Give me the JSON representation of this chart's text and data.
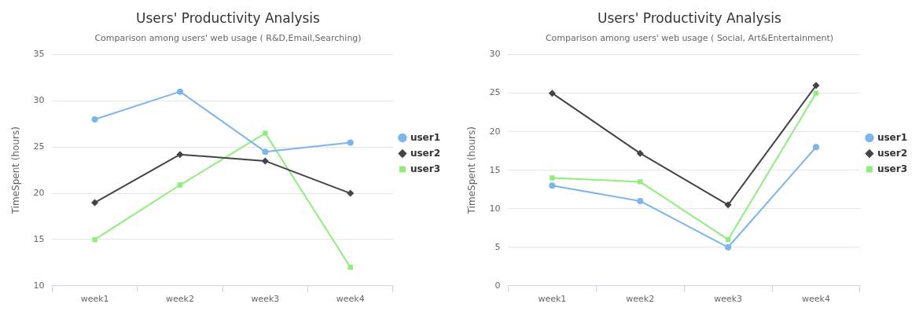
{
  "chart_data": [
    {
      "type": "line",
      "title": "Users' Productivity Analysis",
      "subtitle": "Comparison among users' web usage ( R&D,Email,Searching)",
      "ylabel": "TimeSpent (hours)",
      "categories": [
        "week1",
        "week2",
        "week3",
        "week4"
      ],
      "series": [
        {
          "name": "user1",
          "color": "#7cb5ec",
          "marker": "circle",
          "values": [
            28,
            31,
            24.5,
            25.5
          ]
        },
        {
          "name": "user2",
          "color": "#434348",
          "marker": "diamond",
          "values": [
            19,
            24.2,
            23.5,
            20
          ]
        },
        {
          "name": "user3",
          "color": "#90ed7d",
          "marker": "square",
          "values": [
            15,
            20.9,
            26.5,
            12
          ]
        }
      ],
      "ylim": [
        10,
        35
      ],
      "yticks": [
        10,
        15,
        20,
        25,
        30,
        35
      ],
      "grid": "y",
      "legend": "right"
    },
    {
      "type": "line",
      "title": "Users' Productivity Analysis",
      "subtitle": "Comparison among users' web usage ( Social, Art&Entertainment)",
      "ylabel": "TimeSpent (hours)",
      "categories": [
        "week1",
        "week2",
        "week3",
        "week4"
      ],
      "series": [
        {
          "name": "user1",
          "color": "#7cb5ec",
          "marker": "circle",
          "values": [
            13,
            11,
            5,
            18
          ]
        },
        {
          "name": "user2",
          "color": "#434348",
          "marker": "diamond",
          "values": [
            25,
            17.2,
            10.5,
            26
          ]
        },
        {
          "name": "user3",
          "color": "#90ed7d",
          "marker": "square",
          "values": [
            14,
            13.5,
            6,
            25
          ]
        }
      ],
      "ylim": [
        0,
        30
      ],
      "yticks": [
        0,
        5,
        10,
        15,
        20,
        25,
        30
      ],
      "grid": "y",
      "legend": "right"
    }
  ]
}
